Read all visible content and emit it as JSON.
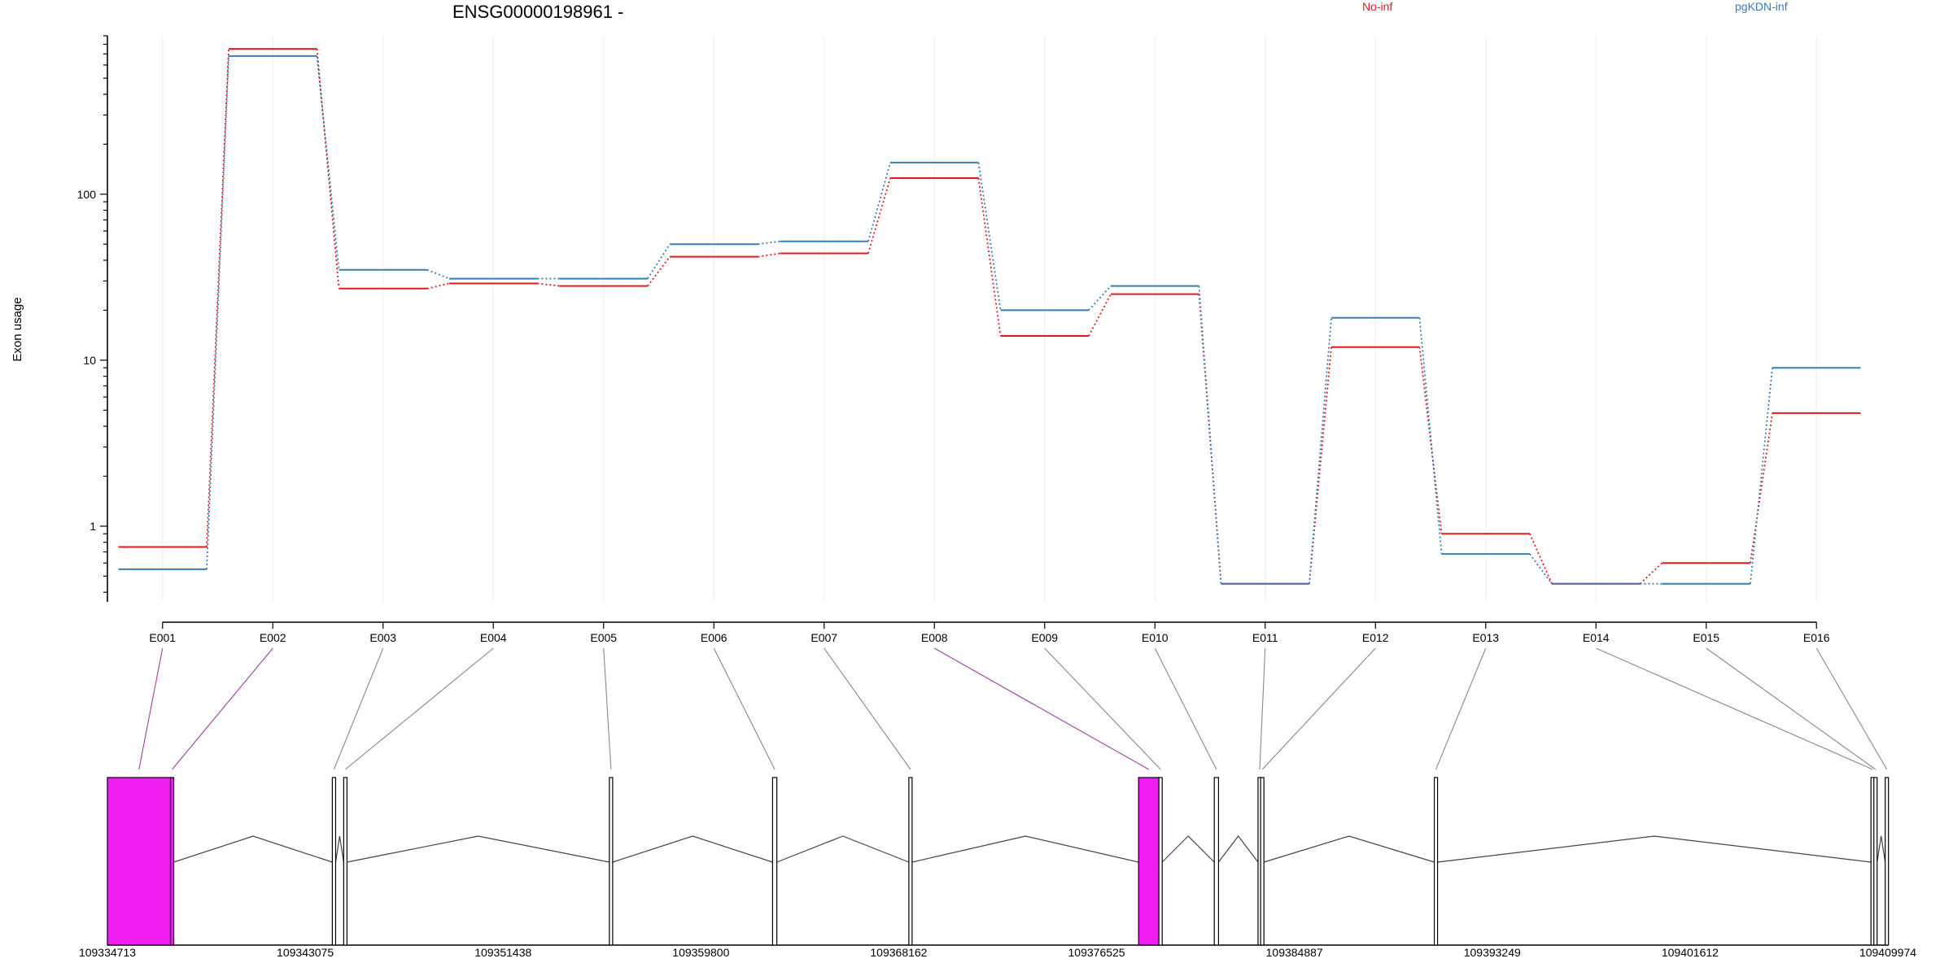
{
  "chart_data": {
    "type": "line",
    "title": "ENSG00000198961 -",
    "ylabel": "Exon usage",
    "y_scale": "log",
    "ylim": [
      0.35,
      900
    ],
    "y_ticks": [
      1,
      10,
      100
    ],
    "legend_placement": "top",
    "categories": [
      "E001",
      "E002",
      "E003",
      "E004",
      "E005",
      "E006",
      "E007",
      "E008",
      "E009",
      "E010",
      "E011",
      "E012",
      "E013",
      "E014",
      "E015",
      "E016"
    ],
    "series": [
      {
        "name": "No-inf",
        "color": "#e41a1c",
        "values": [
          0.75,
          750,
          27,
          29,
          28,
          42,
          44,
          125,
          14,
          25,
          0.45,
          12,
          0.9,
          0.45,
          0.6,
          4.8
        ]
      },
      {
        "name": "pgKDN-inf",
        "color": "#377eb8",
        "values": [
          0.55,
          680,
          35,
          31,
          31,
          50,
          52,
          155,
          20,
          28,
          0.45,
          18,
          0.68,
          0.45,
          0.45,
          9
        ]
      }
    ],
    "gene_model": {
      "genomic_ticks": [
        "109334713",
        "109343075",
        "109351438",
        "109359800",
        "109368162",
        "109376525",
        "109384887",
        "109393249",
        "109401612",
        "109409974"
      ],
      "exons": [
        {
          "id": "E001",
          "start": 109334713,
          "end": 109337380,
          "highlight": true
        },
        {
          "id": "E002",
          "start": 109337380,
          "end": 109337400,
          "highlight": true
        },
        {
          "id": "E003",
          "start": 109344220,
          "end": 109344360,
          "highlight": false
        },
        {
          "id": "E004",
          "start": 109344700,
          "end": 109344840,
          "highlight": false
        },
        {
          "id": "E005",
          "start": 109355930,
          "end": 109356070,
          "highlight": false
        },
        {
          "id": "E006",
          "start": 109362830,
          "end": 109363010,
          "highlight": false
        },
        {
          "id": "E007",
          "start": 109368590,
          "end": 109368720,
          "highlight": false
        },
        {
          "id": "E008",
          "start": 109378300,
          "end": 109379160,
          "highlight": true
        },
        {
          "id": "E009",
          "start": 109379160,
          "end": 109379260,
          "highlight": false
        },
        {
          "id": "E010",
          "start": 109381500,
          "end": 109381680,
          "highlight": false
        },
        {
          "id": "E011",
          "start": 109383350,
          "end": 109383460,
          "highlight": false
        },
        {
          "id": "E012",
          "start": 109383460,
          "end": 109383520,
          "highlight": false
        },
        {
          "id": "E013",
          "start": 109390800,
          "end": 109390920,
          "highlight": false
        },
        {
          "id": "E014",
          "start": 109409260,
          "end": 109409380,
          "highlight": false
        },
        {
          "id": "E015",
          "start": 109409380,
          "end": 109409400,
          "highlight": false
        },
        {
          "id": "E016",
          "start": 109409860,
          "end": 109409974,
          "highlight": false
        }
      ],
      "highlight_color": "#f01ef0"
    }
  }
}
